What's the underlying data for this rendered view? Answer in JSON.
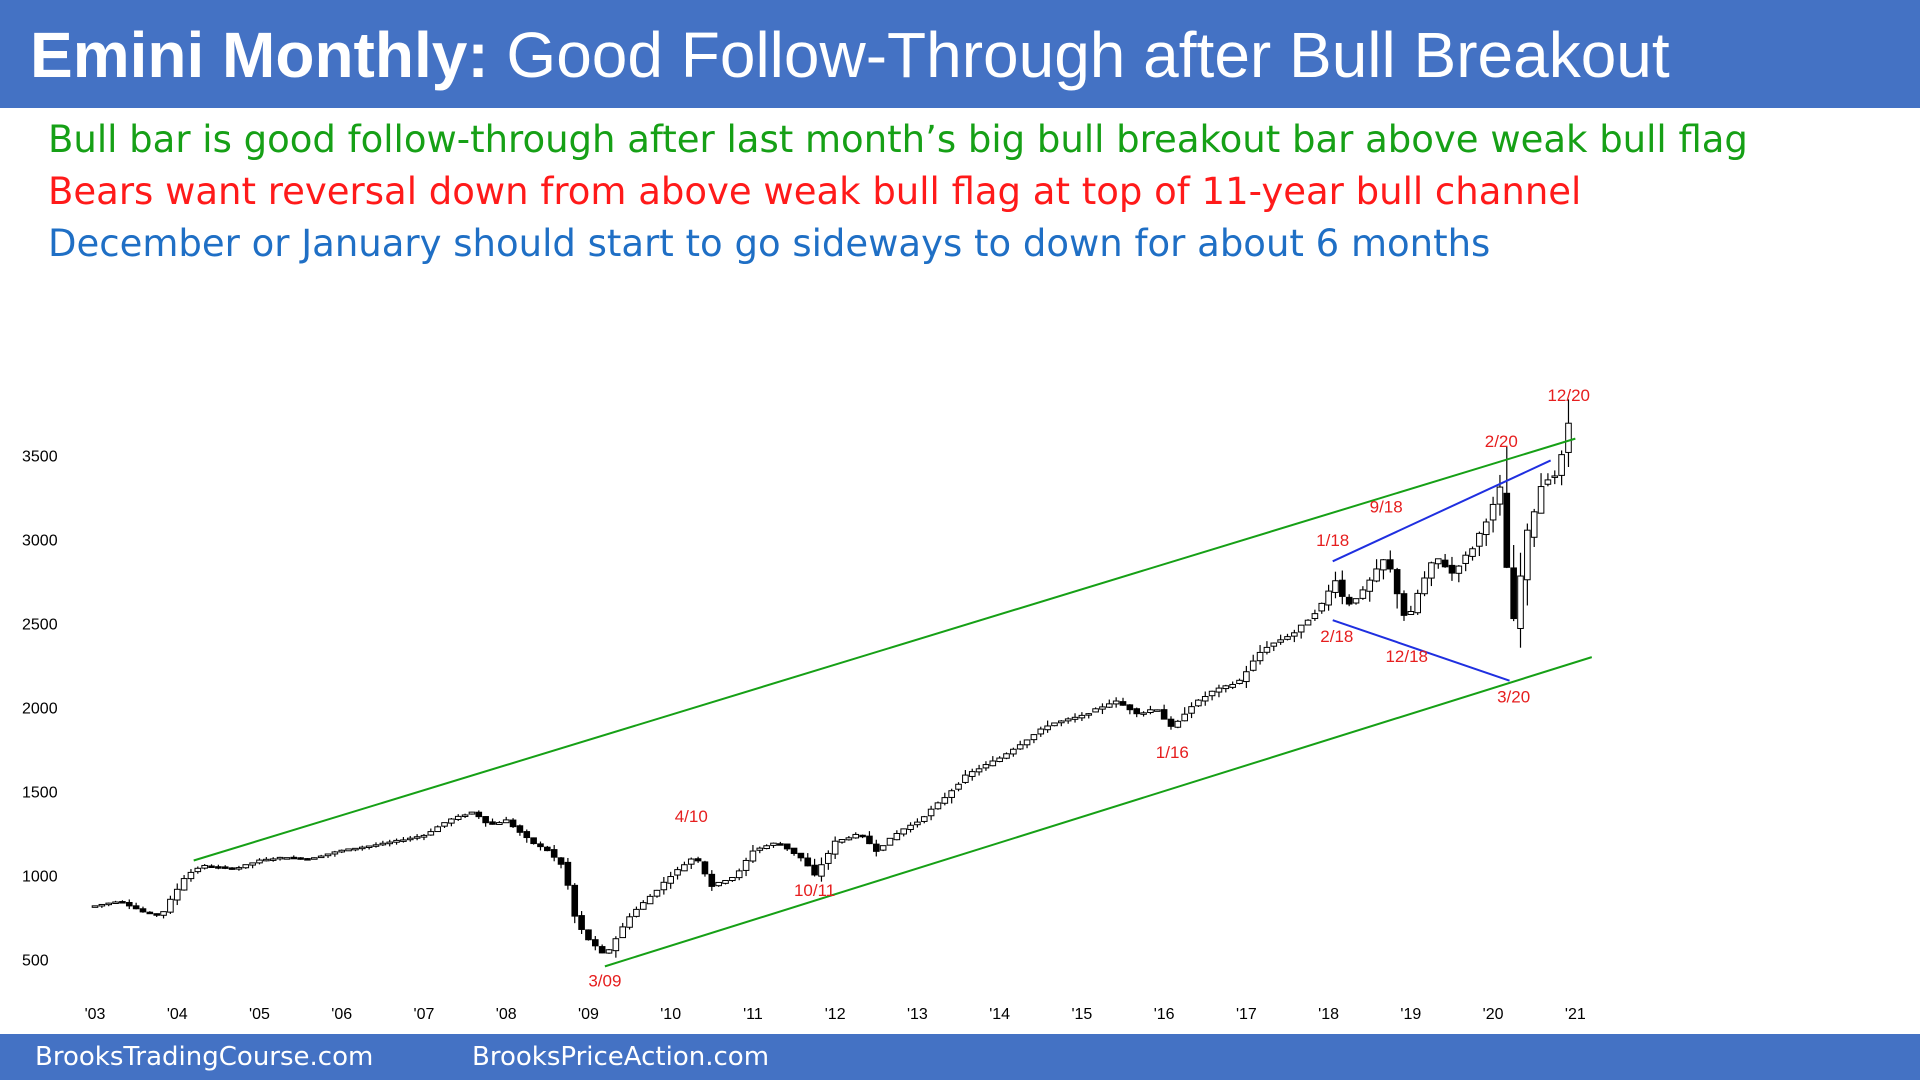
{
  "header": {
    "title_bold": "Emini Monthly:",
    "title_rest": "Good Follow-Through after Bull Breakout",
    "bg_color": "#4472c4"
  },
  "notes": [
    {
      "text": "Bull bar is good follow-through after last month’s big bull breakout bar above weak bull flag",
      "color": "#16a016"
    },
    {
      "text": "Bears want reversal down from above weak bull flag at top of 11-year bull channel",
      "color": "#ff1a1a"
    },
    {
      "text": "December or January should start to go sideways to down for about 6 months",
      "color": "#1f6fc5"
    }
  ],
  "footer": {
    "left": "BrooksTradingCourse.com",
    "right": "BrooksPriceAction.com"
  },
  "chart_data": {
    "type": "candlestick",
    "y_ticks": [
      500,
      1000,
      1500,
      2000,
      2500,
      3000,
      3500
    ],
    "ylim": [
      260,
      3800
    ],
    "x_ticks": [
      "'03",
      "'04",
      "'05",
      "'06",
      "'07",
      "'08",
      "'09",
      "'10",
      "'11",
      "'12",
      "'13",
      "'14",
      "'15",
      "'16",
      "'17",
      "'18",
      "'19",
      "'20",
      "'21"
    ],
    "xlim": [
      2002.55,
      2021.3
    ],
    "price_path": [
      [
        2003.0,
        820
      ],
      [
        2003.3,
        850
      ],
      [
        2003.6,
        780
      ],
      [
        2003.8,
        760
      ],
      [
        2004.1,
        1000
      ],
      [
        2004.3,
        1060
      ],
      [
        2004.7,
        1040
      ],
      [
        2005.0,
        1090
      ],
      [
        2005.3,
        1110
      ],
      [
        2005.6,
        1100
      ],
      [
        2006.0,
        1150
      ],
      [
        2006.5,
        1190
      ],
      [
        2007.0,
        1240
      ],
      [
        2007.3,
        1330
      ],
      [
        2007.6,
        1380
      ],
      [
        2007.8,
        1300
      ],
      [
        2008.0,
        1330
      ],
      [
        2008.3,
        1200
      ],
      [
        2008.5,
        1150
      ],
      [
        2008.7,
        1050
      ],
      [
        2008.85,
        720
      ],
      [
        2009.0,
        620
      ],
      [
        2009.2,
        520
      ],
      [
        2009.5,
        760
      ],
      [
        2009.8,
        900
      ],
      [
        2010.0,
        1000
      ],
      [
        2010.3,
        1120
      ],
      [
        2010.5,
        940
      ],
      [
        2010.8,
        1000
      ],
      [
        2011.0,
        1150
      ],
      [
        2011.3,
        1200
      ],
      [
        2011.6,
        1100
      ],
      [
        2011.75,
        1000
      ],
      [
        2012.0,
        1200
      ],
      [
        2012.3,
        1250
      ],
      [
        2012.5,
        1150
      ],
      [
        2012.8,
        1270
      ],
      [
        2013.0,
        1320
      ],
      [
        2013.3,
        1450
      ],
      [
        2013.6,
        1600
      ],
      [
        2014.0,
        1700
      ],
      [
        2014.3,
        1800
      ],
      [
        2014.6,
        1900
      ],
      [
        2015.0,
        1950
      ],
      [
        2015.4,
        2040
      ],
      [
        2015.7,
        1960
      ],
      [
        2015.9,
        2000
      ],
      [
        2016.1,
        1870
      ],
      [
        2016.3,
        2000
      ],
      [
        2016.6,
        2100
      ],
      [
        2016.9,
        2150
      ],
      [
        2017.2,
        2350
      ],
      [
        2017.6,
        2450
      ],
      [
        2017.9,
        2600
      ],
      [
        2018.1,
        2780
      ],
      [
        2018.2,
        2600
      ],
      [
        2018.4,
        2680
      ],
      [
        2018.7,
        2900
      ],
      [
        2018.95,
        2500
      ],
      [
        2019.1,
        2700
      ],
      [
        2019.3,
        2900
      ],
      [
        2019.5,
        2800
      ],
      [
        2019.75,
        2950
      ],
      [
        2020.0,
        3200
      ],
      [
        2020.1,
        3320
      ],
      [
        2020.15,
        2900
      ],
      [
        2020.25,
        2500
      ],
      [
        2020.4,
        3000
      ],
      [
        2020.6,
        3350
      ],
      [
        2020.75,
        3380
      ],
      [
        2020.8,
        3280
      ],
      [
        2020.85,
        3600
      ],
      [
        2020.92,
        3700
      ]
    ],
    "trendlines": [
      {
        "color": "#16a016",
        "points": [
          [
            2004.2,
            1090
          ],
          [
            2021.0,
            3600
          ]
        ]
      },
      {
        "color": "#16a016",
        "points": [
          [
            2009.2,
            460
          ],
          [
            2021.2,
            2300
          ]
        ]
      },
      {
        "color": "#1f2fe0",
        "points": [
          [
            2018.05,
            2870
          ],
          [
            2020.7,
            3470
          ]
        ]
      },
      {
        "color": "#1f2fe0",
        "points": [
          [
            2018.05,
            2520
          ],
          [
            2020.2,
            2160
          ]
        ]
      }
    ],
    "annotations": [
      {
        "text": "12/20",
        "x": 2020.92,
        "y": 3825
      },
      {
        "text": "2/20",
        "x": 2020.1,
        "y": 3550
      },
      {
        "text": "9/18",
        "x": 2018.7,
        "y": 3160
      },
      {
        "text": "1/18",
        "x": 2018.05,
        "y": 2960
      },
      {
        "text": "2/18",
        "x": 2018.1,
        "y": 2390
      },
      {
        "text": "12/18",
        "x": 2018.95,
        "y": 2270
      },
      {
        "text": "3/20",
        "x": 2020.25,
        "y": 2030
      },
      {
        "text": "1/16",
        "x": 2016.1,
        "y": 1700
      },
      {
        "text": "4/10",
        "x": 2010.25,
        "y": 1320
      },
      {
        "text": "10/11",
        "x": 2011.75,
        "y": 880
      },
      {
        "text": "3/09",
        "x": 2009.2,
        "y": 340
      }
    ],
    "annotation_color": "#e61e1e",
    "candle_color": "#000000",
    "grid": false
  }
}
